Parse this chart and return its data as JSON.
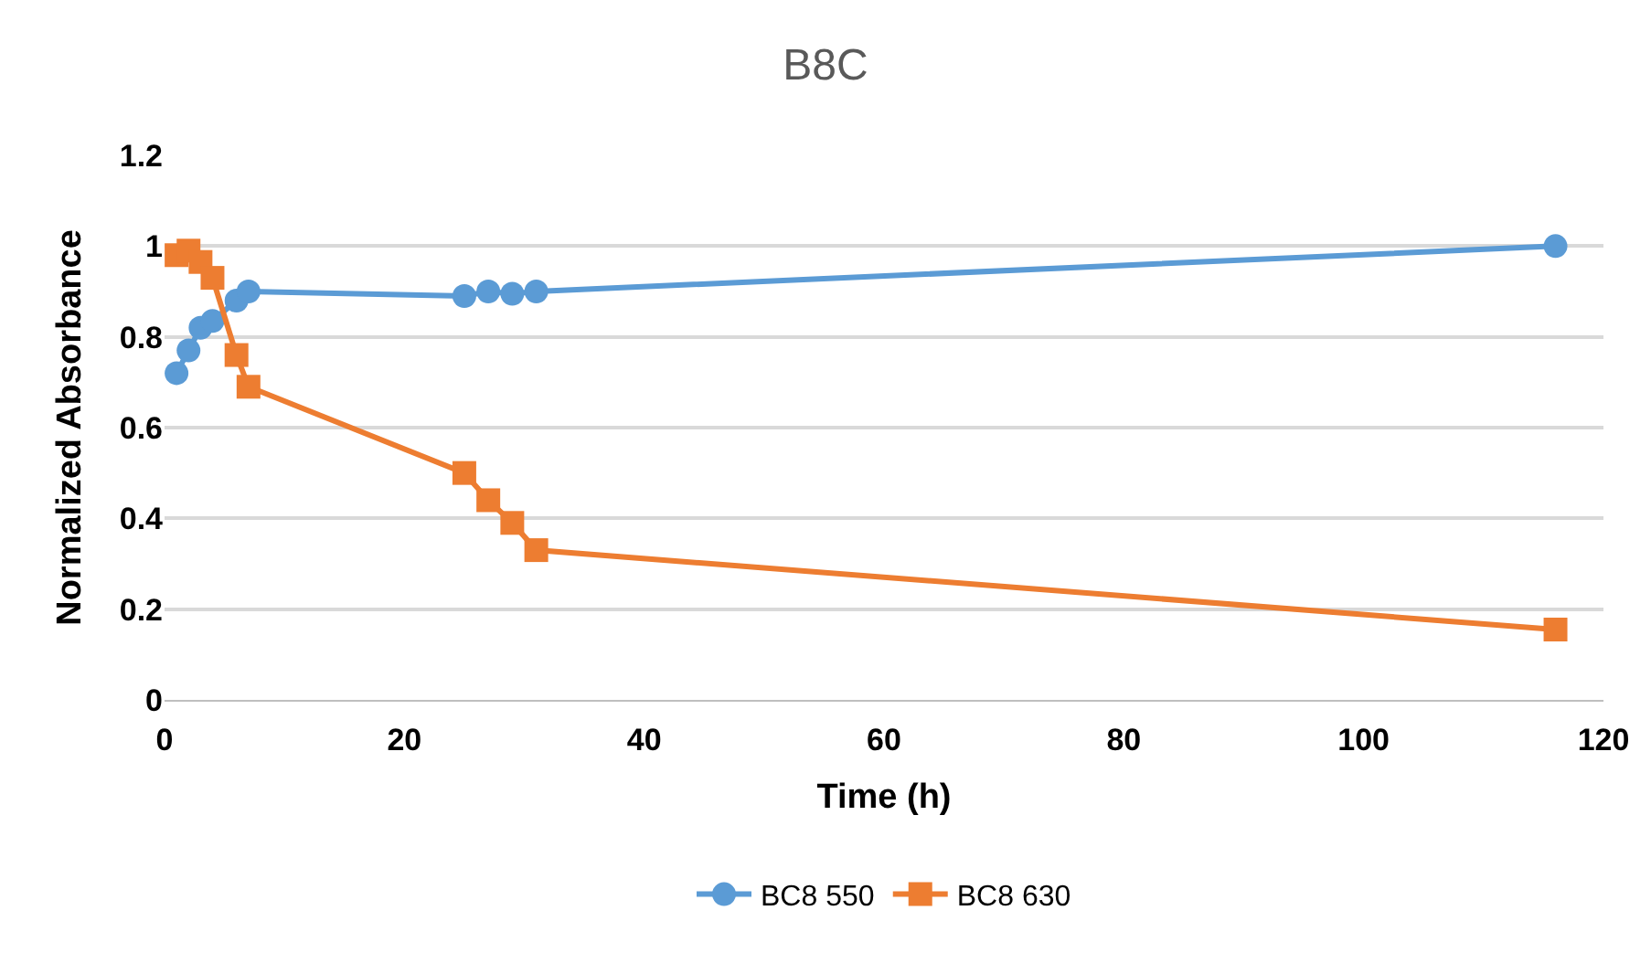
{
  "chart_data": {
    "type": "line",
    "title": "B8C",
    "xlabel": "Time (h)",
    "ylabel": "Normalized Absorbance",
    "x": [
      1,
      2,
      3,
      4,
      6,
      7,
      25,
      27,
      29,
      31,
      116
    ],
    "series": [
      {
        "name": "BC8 550",
        "color": "#5b9bd5",
        "marker": "circle",
        "values": [
          0.72,
          0.77,
          0.82,
          0.835,
          0.88,
          0.9,
          0.89,
          0.9,
          0.895,
          0.9,
          1.0
        ]
      },
      {
        "name": "BC8 630",
        "color": "#ed7d31",
        "marker": "square",
        "values": [
          0.98,
          0.99,
          0.965,
          0.93,
          0.76,
          0.69,
          0.5,
          0.44,
          0.39,
          0.33,
          0.155
        ]
      }
    ],
    "xlim": [
      0,
      120
    ],
    "xticks": [
      0,
      20,
      40,
      60,
      80,
      100,
      120
    ],
    "ylim": [
      0,
      1.2
    ],
    "yticks": [
      0,
      0.2,
      0.4,
      0.6,
      0.8,
      1,
      1.2
    ],
    "grid": "y",
    "legend": "bottom",
    "line_style": "solid"
  }
}
